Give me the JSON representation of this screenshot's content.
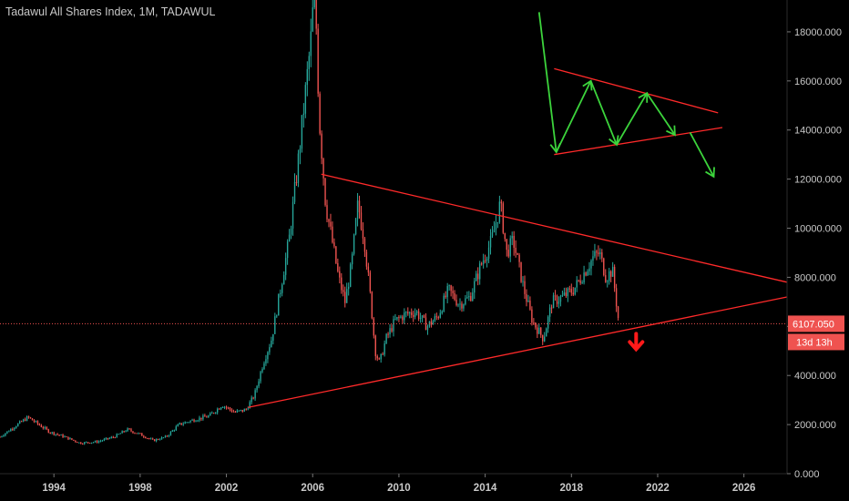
{
  "header": {
    "title": "Tadawul All Shares Index, 1M, TADAWUL"
  },
  "chart_data": {
    "type": "candlestick",
    "title": "Tadawul All Shares Index, 1M, TADAWUL",
    "xlabel": "",
    "ylabel": "",
    "xlim": [
      1991.5,
      2028.0
    ],
    "ylim": [
      0,
      19000
    ],
    "x_ticks": [
      "1994",
      "1998",
      "2002",
      "2006",
      "2010",
      "2014",
      "2018",
      "2022",
      "2026"
    ],
    "y_ticks": [
      "0.000",
      "2000.000",
      "4000.000",
      "6000.000",
      "8000.000",
      "10000.000",
      "12000.000",
      "14000.000",
      "16000.000",
      "18000.000"
    ],
    "grid": false,
    "colors": {
      "up": "#26a69a",
      "down": "#ef5350",
      "trendline": "#ff2a2a",
      "arrow_green": "#3cd43c",
      "arrow_red": "#ff1a1a",
      "axis_text": "#c9c9c9",
      "background": "#000000"
    },
    "price_points": [
      [
        1991.5,
        1500
      ],
      [
        1992.3,
        2000
      ],
      [
        1992.8,
        2300
      ],
      [
        1993.3,
        2000
      ],
      [
        1993.8,
        1700
      ],
      [
        1994.5,
        1500
      ],
      [
        1995.2,
        1250
      ],
      [
        1996.0,
        1300
      ],
      [
        1996.8,
        1500
      ],
      [
        1997.4,
        1800
      ],
      [
        1998.0,
        1600
      ],
      [
        1998.6,
        1350
      ],
      [
        1999.2,
        1500
      ],
      [
        1999.8,
        2000
      ],
      [
        2000.5,
        2200
      ],
      [
        2001.2,
        2350
      ],
      [
        2001.8,
        2800
      ],
      [
        2002.4,
        2500
      ],
      [
        2002.9,
        2600
      ],
      [
        2003.3,
        3200
      ],
      [
        2003.7,
        4500
      ],
      [
        2004.1,
        5500
      ],
      [
        2004.5,
        7500
      ],
      [
        2004.9,
        9500
      ],
      [
        2005.3,
        12500
      ],
      [
        2005.6,
        15000
      ],
      [
        2005.9,
        17500
      ],
      [
        2006.1,
        20000
      ],
      [
        2006.3,
        14500
      ],
      [
        2006.6,
        11000
      ],
      [
        2006.9,
        9500
      ],
      [
        2007.2,
        8000
      ],
      [
        2007.5,
        7000
      ],
      [
        2007.8,
        8500
      ],
      [
        2008.1,
        11000
      ],
      [
        2008.4,
        9500
      ],
      [
        2008.7,
        7000
      ],
      [
        2008.9,
        5000
      ],
      [
        2009.1,
        4500
      ],
      [
        2009.4,
        5500
      ],
      [
        2009.8,
        6200
      ],
      [
        2010.3,
        6500
      ],
      [
        2010.8,
        6600
      ],
      [
        2011.3,
        6000
      ],
      [
        2011.8,
        6400
      ],
      [
        2012.3,
        7500
      ],
      [
        2012.8,
        6900
      ],
      [
        2013.3,
        7200
      ],
      [
        2013.8,
        8500
      ],
      [
        2014.3,
        9500
      ],
      [
        2014.7,
        11000
      ],
      [
        2015.0,
        9000
      ],
      [
        2015.3,
        9500
      ],
      [
        2015.8,
        7500
      ],
      [
        2016.2,
        6200
      ],
      [
        2016.7,
        5500
      ],
      [
        2017.1,
        7000
      ],
      [
        2017.6,
        7200
      ],
      [
        2018.1,
        7500
      ],
      [
        2018.6,
        8200
      ],
      [
        2019.0,
        8800
      ],
      [
        2019.3,
        9000
      ],
      [
        2019.6,
        8000
      ],
      [
        2019.9,
        8300
      ],
      [
        2020.2,
        6107
      ]
    ],
    "last_price": {
      "label": "6107.050",
      "value": 6107.05
    },
    "countdown": {
      "label": "13d 13h"
    },
    "trendlines": [
      {
        "name": "upper",
        "from": [
          2006.4,
          12200
        ],
        "to": [
          2028.0,
          7800
        ]
      },
      {
        "name": "lower",
        "from": [
          2003.0,
          2700
        ],
        "to": [
          2028.0,
          7200
        ]
      }
    ],
    "annotation_channel": [
      {
        "from": [
          2017.2,
          16500
        ],
        "to": [
          2024.8,
          14700
        ]
      },
      {
        "from": [
          2017.2,
          13000
        ],
        "to": [
          2025.0,
          14100
        ]
      }
    ]
  }
}
